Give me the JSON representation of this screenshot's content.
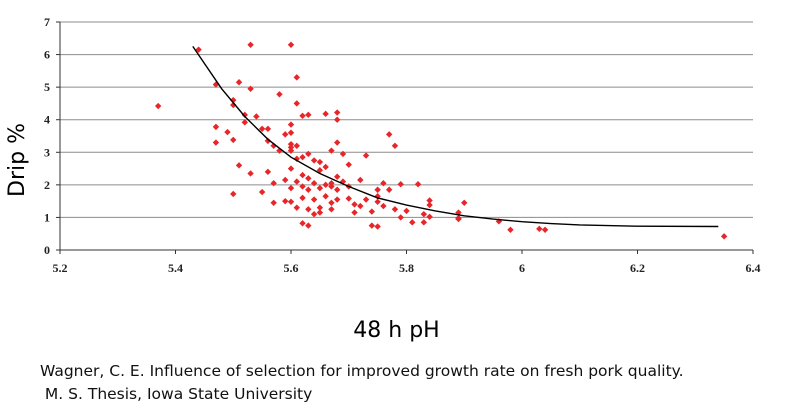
{
  "chart_data": {
    "type": "scatter",
    "xlabel": "48 h pH",
    "ylabel": "Drip %",
    "xlim": [
      5.2,
      6.4
    ],
    "ylim": [
      0,
      7
    ],
    "xticks": [
      "5.2",
      "5.4",
      "5.6",
      "5.8",
      "6",
      "6.2",
      "6.4"
    ],
    "yticks": [
      "0",
      "1",
      "2",
      "3",
      "4",
      "5",
      "6",
      "7"
    ],
    "grid": "horizontal",
    "marker_color": "#e8262a",
    "trend": {
      "label": "",
      "x": [
        5.43,
        5.48,
        5.52,
        5.56,
        5.6,
        5.65,
        5.7,
        5.75,
        5.8,
        5.85,
        5.9,
        5.95,
        6.0,
        6.05,
        6.1,
        6.2,
        6.34
      ],
      "y": [
        6.25,
        4.95,
        4.1,
        3.4,
        2.85,
        2.35,
        1.95,
        1.6,
        1.38,
        1.2,
        1.05,
        0.95,
        0.87,
        0.81,
        0.77,
        0.73,
        0.72
      ]
    },
    "points": [
      [
        5.37,
        4.42
      ],
      [
        5.44,
        6.15
      ],
      [
        5.47,
        5.08
      ],
      [
        5.47,
        3.78
      ],
      [
        5.47,
        3.3
      ],
      [
        5.49,
        3.62
      ],
      [
        5.5,
        4.6
      ],
      [
        5.5,
        4.45
      ],
      [
        5.5,
        3.38
      ],
      [
        5.5,
        1.72
      ],
      [
        5.51,
        5.15
      ],
      [
        5.51,
        2.6
      ],
      [
        5.52,
        4.15
      ],
      [
        5.52,
        3.92
      ],
      [
        5.53,
        6.3
      ],
      [
        5.53,
        4.95
      ],
      [
        5.53,
        2.35
      ],
      [
        5.54,
        4.1
      ],
      [
        5.55,
        3.72
      ],
      [
        5.55,
        1.78
      ],
      [
        5.56,
        3.72
      ],
      [
        5.56,
        3.35
      ],
      [
        5.56,
        2.4
      ],
      [
        5.57,
        3.2
      ],
      [
        5.57,
        2.05
      ],
      [
        5.57,
        1.45
      ],
      [
        5.58,
        4.78
      ],
      [
        5.58,
        3.05
      ],
      [
        5.59,
        3.55
      ],
      [
        5.59,
        2.15
      ],
      [
        5.59,
        1.5
      ],
      [
        5.6,
        6.3
      ],
      [
        5.6,
        3.85
      ],
      [
        5.6,
        3.6
      ],
      [
        5.6,
        3.25
      ],
      [
        5.6,
        3.15
      ],
      [
        5.6,
        3.05
      ],
      [
        5.6,
        2.5
      ],
      [
        5.6,
        1.9
      ],
      [
        5.6,
        1.48
      ],
      [
        5.61,
        5.3
      ],
      [
        5.61,
        4.5
      ],
      [
        5.61,
        3.2
      ],
      [
        5.61,
        2.8
      ],
      [
        5.61,
        2.1
      ],
      [
        5.61,
        1.3
      ],
      [
        5.62,
        4.12
      ],
      [
        5.62,
        2.85
      ],
      [
        5.62,
        2.3
      ],
      [
        5.62,
        1.95
      ],
      [
        5.62,
        1.6
      ],
      [
        5.62,
        0.82
      ],
      [
        5.63,
        4.15
      ],
      [
        5.63,
        2.95
      ],
      [
        5.63,
        2.2
      ],
      [
        5.63,
        1.85
      ],
      [
        5.63,
        1.25
      ],
      [
        5.63,
        0.75
      ],
      [
        5.64,
        2.75
      ],
      [
        5.64,
        2.05
      ],
      [
        5.64,
        1.55
      ],
      [
        5.64,
        1.1
      ],
      [
        5.65,
        2.7
      ],
      [
        5.65,
        2.45
      ],
      [
        5.65,
        1.9
      ],
      [
        5.65,
        1.3
      ],
      [
        5.65,
        1.15
      ],
      [
        5.66,
        4.18
      ],
      [
        5.66,
        2.55
      ],
      [
        5.66,
        2.0
      ],
      [
        5.66,
        1.65
      ],
      [
        5.67,
        3.05
      ],
      [
        5.67,
        2.05
      ],
      [
        5.67,
        1.95
      ],
      [
        5.67,
        1.45
      ],
      [
        5.67,
        1.25
      ],
      [
        5.68,
        4.22
      ],
      [
        5.68,
        4.0
      ],
      [
        5.68,
        3.3
      ],
      [
        5.68,
        2.25
      ],
      [
        5.68,
        1.85
      ],
      [
        5.68,
        1.55
      ],
      [
        5.69,
        2.95
      ],
      [
        5.69,
        2.1
      ],
      [
        5.7,
        2.62
      ],
      [
        5.7,
        1.95
      ],
      [
        5.7,
        1.58
      ],
      [
        5.71,
        1.4
      ],
      [
        5.71,
        1.15
      ],
      [
        5.72,
        2.15
      ],
      [
        5.72,
        1.35
      ],
      [
        5.73,
        2.9
      ],
      [
        5.73,
        1.55
      ],
      [
        5.74,
        1.18
      ],
      [
        5.74,
        0.75
      ],
      [
        5.75,
        1.85
      ],
      [
        5.75,
        1.65
      ],
      [
        5.75,
        1.48
      ],
      [
        5.75,
        0.72
      ],
      [
        5.76,
        2.05
      ],
      [
        5.76,
        1.35
      ],
      [
        5.77,
        3.55
      ],
      [
        5.77,
        1.85
      ],
      [
        5.78,
        3.2
      ],
      [
        5.78,
        1.25
      ],
      [
        5.79,
        2.02
      ],
      [
        5.79,
        1.0
      ],
      [
        5.8,
        1.2
      ],
      [
        5.81,
        0.85
      ],
      [
        5.82,
        2.02
      ],
      [
        5.83,
        1.1
      ],
      [
        5.83,
        0.85
      ],
      [
        5.84,
        1.52
      ],
      [
        5.84,
        1.38
      ],
      [
        5.84,
        1.02
      ],
      [
        5.89,
        1.15
      ],
      [
        5.89,
        0.98
      ],
      [
        5.89,
        0.95
      ],
      [
        5.9,
        1.45
      ],
      [
        5.96,
        0.88
      ],
      [
        5.98,
        0.62
      ],
      [
        6.03,
        0.65
      ],
      [
        6.04,
        0.62
      ],
      [
        6.35,
        0.42
      ]
    ]
  },
  "citation": {
    "line1": "Wagner, C. E. Influence of selection for improved growth rate on fresh pork quality.",
    "line2": " M. S. Thesis, Iowa State University"
  }
}
